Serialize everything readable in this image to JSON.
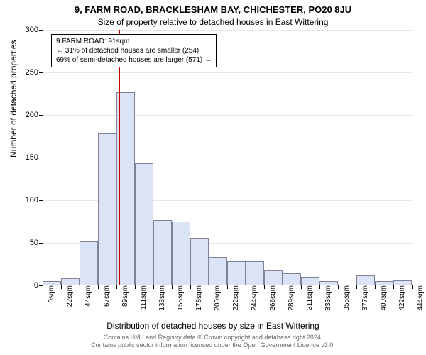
{
  "titles": {
    "main": "9, FARM ROAD, BRACKLESHAM BAY, CHICHESTER, PO20 8JU",
    "sub": "Size of property relative to detached houses in East Wittering"
  },
  "chart": {
    "type": "histogram",
    "y_axis": {
      "label": "Number of detached properties",
      "min": 0,
      "max": 300,
      "ticks": [
        0,
        50,
        100,
        150,
        200,
        250,
        300
      ]
    },
    "x_axis": {
      "label": "Distribution of detached houses by size in East Wittering",
      "ticks": [
        "0sqm",
        "22sqm",
        "44sqm",
        "67sqm",
        "89sqm",
        "111sqm",
        "133sqm",
        "155sqm",
        "178sqm",
        "200sqm",
        "222sqm",
        "244sqm",
        "266sqm",
        "289sqm",
        "311sqm",
        "333sqm",
        "355sqm",
        "377sqm",
        "400sqm",
        "422sqm",
        "444sqm"
      ]
    },
    "bars": {
      "values": [
        5,
        8,
        52,
        178,
        227,
        143,
        77,
        75,
        56,
        33,
        28,
        28,
        18,
        14,
        10,
        5,
        0,
        12,
        5,
        6
      ],
      "fill_color": "#dbe3f4",
      "border_color": "#808098"
    },
    "reference_line": {
      "x_value": 91,
      "x_range_max": 444,
      "color": "#cc0000"
    },
    "background_color": "#ffffff",
    "grid_color": "#d0d0d0"
  },
  "legend": {
    "line1": "9 FARM ROAD: 91sqm",
    "line2": "← 31% of detached houses are smaller (254)",
    "line3": "69% of semi-detached houses are larger (571) →"
  },
  "footer": {
    "line1": "Contains HM Land Registry data © Crown copyright and database right 2024.",
    "line2": "Contains public sector information licensed under the Open Government Licence v3.0."
  }
}
